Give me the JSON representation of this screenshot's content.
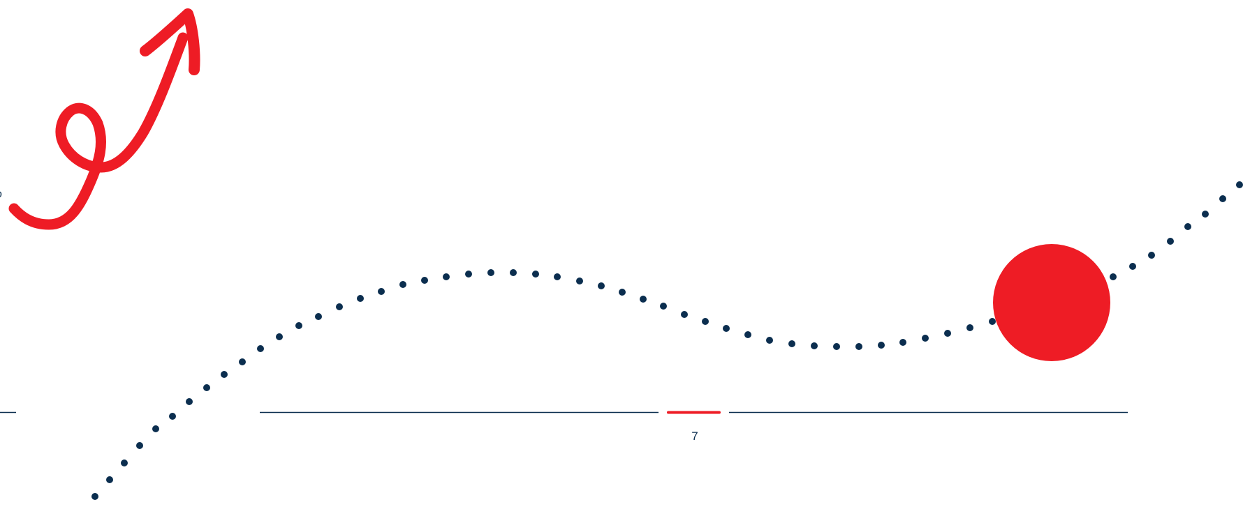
{
  "page": {
    "number": "7",
    "edge_glyph": "o"
  },
  "colors": {
    "accent": "#ee1c25",
    "navy": "#0b2e4f",
    "background": "#ffffff"
  },
  "icons": [
    "curly-arrow-icon"
  ]
}
